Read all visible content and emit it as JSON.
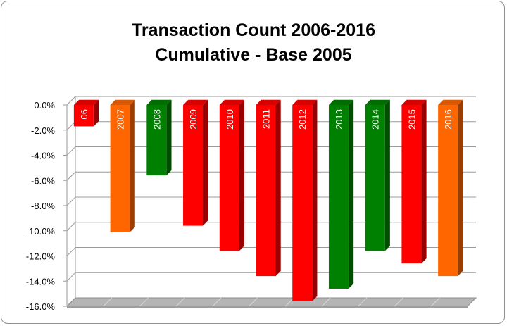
{
  "chart_data": {
    "type": "bar",
    "title": "Transaction Count 2006-2016",
    "subtitle": "Cumulative - Base 2005",
    "xlabel": "",
    "ylabel": "",
    "ylim": [
      -16,
      0
    ],
    "grid": true,
    "legend": "none",
    "y_tick_labels": [
      "0.0%",
      "-2.0%",
      "-4.0%",
      "-6.0%",
      "-8.0%",
      "-10.0%",
      "-12.0%",
      "-14.0%",
      "-16.0%"
    ],
    "y_ticks": [
      0,
      -2,
      -4,
      -6,
      -8,
      -10,
      -12,
      -14,
      -16
    ],
    "categories": [
      "2006",
      "2007",
      "2008",
      "2009",
      "2010",
      "2011",
      "2012",
      "2013",
      "2014",
      "2015",
      "2016"
    ],
    "bar_labels": [
      "06",
      "2007",
      "2008",
      "2009",
      "2010",
      "2011",
      "2012",
      "2013",
      "2014",
      "2015",
      "2016"
    ],
    "values": [
      -1.7,
      -10.1,
      -5.6,
      -9.6,
      -11.6,
      -13.6,
      -15.6,
      -14.6,
      -11.6,
      -12.6,
      -13.6
    ],
    "colors": [
      "#ff0000",
      "#ff6600",
      "#008000",
      "#ff0000",
      "#ff0000",
      "#ff0000",
      "#ff0000",
      "#008000",
      "#008000",
      "#ff0000",
      "#ff6600"
    ]
  }
}
